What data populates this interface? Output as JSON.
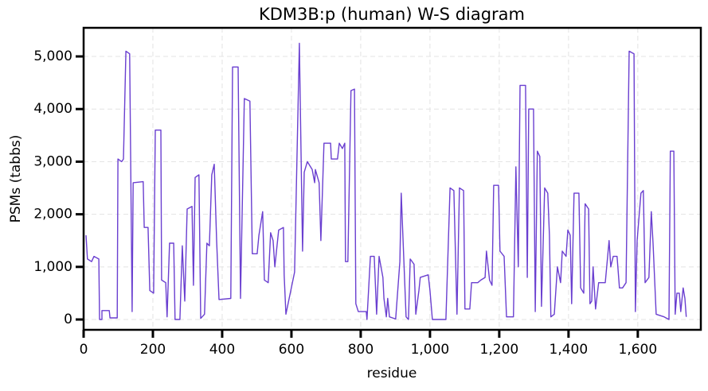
{
  "chart_data": {
    "type": "line",
    "title": "KDM3B:p (human) W-S diagram",
    "x_label": "residue",
    "y_label": "PSMs (tabbs)",
    "color": "#6a3fd0",
    "grid": true,
    "xlim": [
      0,
      1782
    ],
    "ylim": [
      -196,
      5544
    ],
    "xticks": [
      0,
      200,
      400,
      600,
      800,
      {
        "value": 1000,
        "label": "1,000"
      },
      {
        "value": 1200,
        "label": "1,200"
      },
      {
        "value": 1400,
        "label": "1,400"
      },
      {
        "value": 1600,
        "label": "1,600"
      }
    ],
    "yticks": [
      0,
      {
        "value": 1000,
        "label": "1,000"
      },
      {
        "value": 2000,
        "label": "2,000"
      },
      {
        "value": 3000,
        "label": "3,000"
      },
      {
        "value": 4000,
        "label": "4,000"
      },
      {
        "value": 5000,
        "label": "5,000"
      }
    ],
    "x": [
      7,
      11,
      23,
      30,
      44,
      46,
      53,
      53,
      74,
      76,
      97,
      99,
      110,
      115,
      122,
      133,
      140,
      143,
      172,
      175,
      186,
      191,
      202,
      207,
      223,
      225,
      237,
      241,
      248,
      260,
      264,
      278,
      285,
      292,
      299,
      313,
      317,
      322,
      333,
      338,
      349,
      356,
      363,
      370,
      377,
      384,
      391,
      425,
      430,
      446,
      453,
      464,
      480,
      487,
      501,
      506,
      517,
      522,
      533,
      540,
      547,
      552,
      563,
      577,
      579,
      584,
      609,
      623,
      632,
      637,
      646,
      660,
      667,
      669,
      680,
      685,
      694,
      713,
      715,
      733,
      738,
      747,
      754,
      756,
      763,
      772,
      782,
      786,
      793,
      816,
      818,
      828,
      839,
      846,
      853,
      864,
      867,
      874,
      878,
      883,
      901,
      913,
      917,
      924,
      931,
      938,
      943,
      954,
      959,
      968,
      972,
      995,
      1000,
      1007,
      1046,
      1058,
      1069,
      1078,
      1085,
      1097,
      1101,
      1115,
      1120,
      1138,
      1147,
      1159,
      1163,
      1172,
      1179,
      1184,
      1198,
      1202,
      1214,
      1221,
      1241,
      1248,
      1255,
      1260,
      1276,
      1281,
      1285,
      1299,
      1304,
      1310,
      1317,
      1322,
      1331,
      1340,
      1345,
      1349,
      1359,
      1368,
      1377,
      1382,
      1393,
      1398,
      1405,
      1409,
      1416,
      1430,
      1435,
      1444,
      1448,
      1458,
      1462,
      1467,
      1471,
      1478,
      1487,
      1506,
      1517,
      1522,
      1529,
      1540,
      1547,
      1556,
      1566,
      1575,
      1589,
      1593,
      1598,
      1609,
      1616,
      1621,
      1632,
      1639,
      1644,
      1653,
      1676,
      1690,
      1694,
      1704,
      1708,
      1713,
      1720,
      1724,
      1731,
      1736,
      1740
    ],
    "values": [
      1600,
      1150,
      1100,
      1200,
      1150,
      0,
      0,
      170,
      170,
      30,
      30,
      3050,
      3000,
      3050,
      5100,
      5050,
      150,
      2600,
      2620,
      1750,
      1750,
      550,
      500,
      3600,
      3600,
      750,
      700,
      50,
      1450,
      1450,
      0,
      0,
      1400,
      350,
      2100,
      2150,
      650,
      2700,
      2750,
      20,
      100,
      1450,
      1400,
      2750,
      2950,
      1500,
      380,
      400,
      4800,
      4800,
      400,
      4200,
      4150,
      1250,
      1250,
      1600,
      2050,
      750,
      700,
      1650,
      1500,
      1000,
      1700,
      1750,
      850,
      100,
      900,
      5250,
      1300,
      2800,
      3000,
      2850,
      2600,
      2850,
      2600,
      1500,
      3350,
      3350,
      3050,
      3050,
      3350,
      3250,
      3350,
      1100,
      1100,
      4350,
      4380,
      300,
      150,
      150,
      0,
      1200,
      1200,
      100,
      1200,
      800,
      400,
      50,
      400,
      50,
      10,
      1100,
      2400,
      1200,
      50,
      0,
      1150,
      1050,
      100,
      550,
      800,
      850,
      550,
      0,
      0,
      2500,
      2450,
      100,
      2500,
      2450,
      200,
      200,
      700,
      700,
      750,
      800,
      1300,
      750,
      650,
      2550,
      2550,
      1300,
      1200,
      50,
      50,
      2900,
      1000,
      4450,
      4450,
      800,
      4000,
      4000,
      150,
      3200,
      3100,
      250,
      2500,
      2400,
      1600,
      50,
      100,
      1000,
      700,
      1300,
      1200,
      1700,
      1600,
      300,
      2400,
      2400,
      600,
      500,
      2200,
      2100,
      300,
      350,
      1000,
      200,
      700,
      700,
      1500,
      1000,
      1200,
      1200,
      600,
      600,
      700,
      5100,
      5050,
      150,
      1500,
      2400,
      2450,
      700,
      800,
      2050,
      1450,
      100,
      50,
      0,
      3200,
      3200,
      100,
      500,
      500,
      150,
      600,
      400,
      50
    ]
  }
}
